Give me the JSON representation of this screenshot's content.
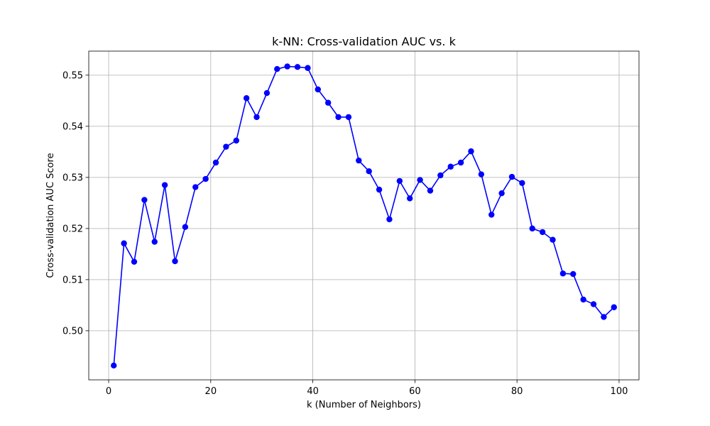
{
  "chart_data": {
    "type": "line",
    "title": "k-NN: Cross-validation AUC vs. k",
    "xlabel": "k (Number of Neighbors)",
    "ylabel": "Cross-validation AUC Score",
    "xlim": [
      -3.9,
      103.9
    ],
    "ylim": [
      0.4904,
      0.5547
    ],
    "xticks": [
      0,
      20,
      40,
      60,
      80,
      100
    ],
    "yticks": [
      0.5,
      0.51,
      0.52,
      0.53,
      0.54,
      0.55
    ],
    "xtick_labels": [
      "0",
      "20",
      "40",
      "60",
      "80",
      "100"
    ],
    "ytick_labels": [
      "0.50",
      "0.51",
      "0.52",
      "0.53",
      "0.54",
      "0.55"
    ],
    "grid": true,
    "line_color": "#0000ff",
    "marker": "circle",
    "series": [
      {
        "x": [
          1,
          3,
          5,
          7,
          9,
          11,
          13,
          15,
          17,
          19,
          21,
          23,
          25,
          27,
          29,
          31,
          33,
          35,
          37,
          39,
          41,
          43,
          45,
          47,
          49,
          51,
          53,
          55,
          57,
          59,
          61,
          63,
          65,
          67,
          69,
          71,
          73,
          75,
          77,
          79,
          81,
          83,
          85,
          87,
          89,
          91,
          93,
          95,
          97,
          99
        ],
        "values": [
          0.4932,
          0.5171,
          0.5135,
          0.5256,
          0.5174,
          0.5285,
          0.5136,
          0.5203,
          0.5281,
          0.5297,
          0.5329,
          0.536,
          0.5372,
          0.5455,
          0.5418,
          0.5465,
          0.5512,
          0.5517,
          0.5516,
          0.5514,
          0.5472,
          0.5446,
          0.5418,
          0.5418,
          0.5333,
          0.5312,
          0.5276,
          0.5218,
          0.5293,
          0.5259,
          0.5295,
          0.5274,
          0.5304,
          0.5321,
          0.5329,
          0.5351,
          0.5306,
          0.5227,
          0.5269,
          0.5301,
          0.5289,
          0.52,
          0.5193,
          0.5178,
          0.5112,
          0.5111,
          0.5061,
          0.5052,
          0.5027,
          0.5046
        ]
      }
    ]
  }
}
